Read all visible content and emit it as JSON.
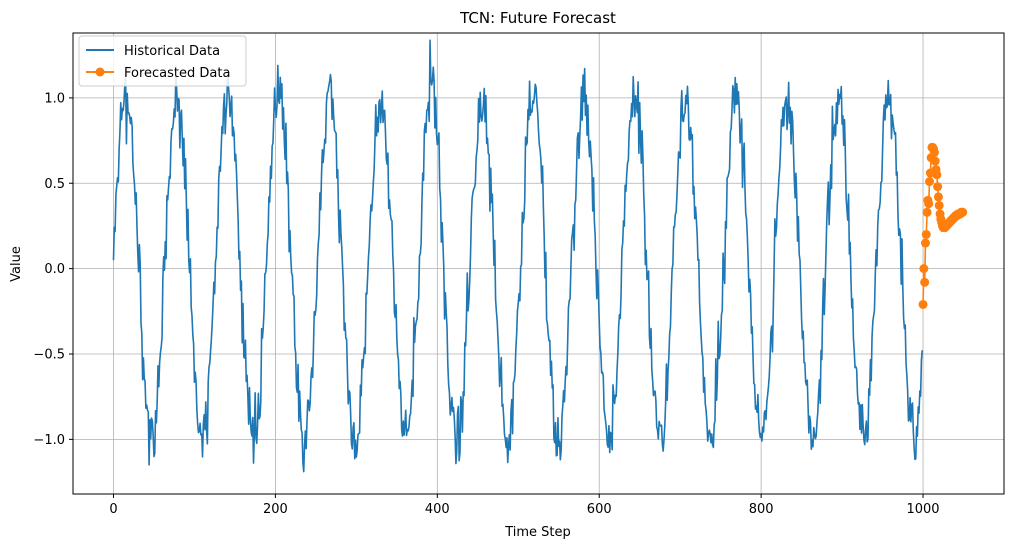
{
  "chart_data": {
    "type": "line",
    "title": "TCN: Future Forecast",
    "xlabel": "Time Step",
    "ylabel": "Value",
    "xlim": [
      -50,
      1100
    ],
    "ylim": [
      -1.32,
      1.38
    ],
    "x_ticks": [
      0,
      200,
      400,
      600,
      800,
      1000
    ],
    "x_tick_labels": [
      "0",
      "200",
      "400",
      "600",
      "800",
      "1000"
    ],
    "y_ticks": [
      -1.0,
      -0.5,
      0.0,
      0.5,
      1.0
    ],
    "y_tick_labels": [
      "−1.0",
      "−0.5",
      "0.0",
      "0.5",
      "1.0"
    ],
    "grid": true,
    "legend_position": "top-left",
    "series": [
      {
        "name": "Historical Data",
        "color": "#1f77b4",
        "marker": "none",
        "generator": {
          "x_start": 0,
          "x_end": 999,
          "amplitude": 1.0,
          "period": 62.8,
          "noise": 0.1,
          "first_value": 0.05
        }
      },
      {
        "name": "Forecasted Data",
        "color": "#ff7f0e",
        "marker": "circle",
        "x": [
          1000,
          1001,
          1002,
          1003,
          1004,
          1005,
          1006,
          1007,
          1008,
          1009,
          1010,
          1011,
          1012,
          1013,
          1014,
          1015,
          1016,
          1017,
          1018,
          1019,
          1020,
          1021,
          1022,
          1023,
          1024,
          1025,
          1026,
          1027,
          1028,
          1029,
          1030,
          1031,
          1032,
          1033,
          1034,
          1035,
          1036,
          1037,
          1038,
          1039,
          1040,
          1041,
          1042,
          1043,
          1044,
          1045,
          1046,
          1047,
          1048,
          1049
        ],
        "y": [
          -0.21,
          0.0,
          -0.08,
          0.15,
          0.2,
          0.33,
          0.4,
          0.38,
          0.51,
          0.56,
          0.65,
          0.71,
          0.71,
          0.7,
          0.68,
          0.63,
          0.58,
          0.55,
          0.48,
          0.42,
          0.37,
          0.32,
          0.29,
          0.27,
          0.25,
          0.24,
          0.24,
          0.24,
          0.25,
          0.25,
          0.26,
          0.26,
          0.27,
          0.27,
          0.28,
          0.28,
          0.29,
          0.29,
          0.3,
          0.3,
          0.31,
          0.31,
          0.31,
          0.32,
          0.32,
          0.32,
          0.32,
          0.33,
          0.33,
          0.33
        ]
      }
    ]
  }
}
